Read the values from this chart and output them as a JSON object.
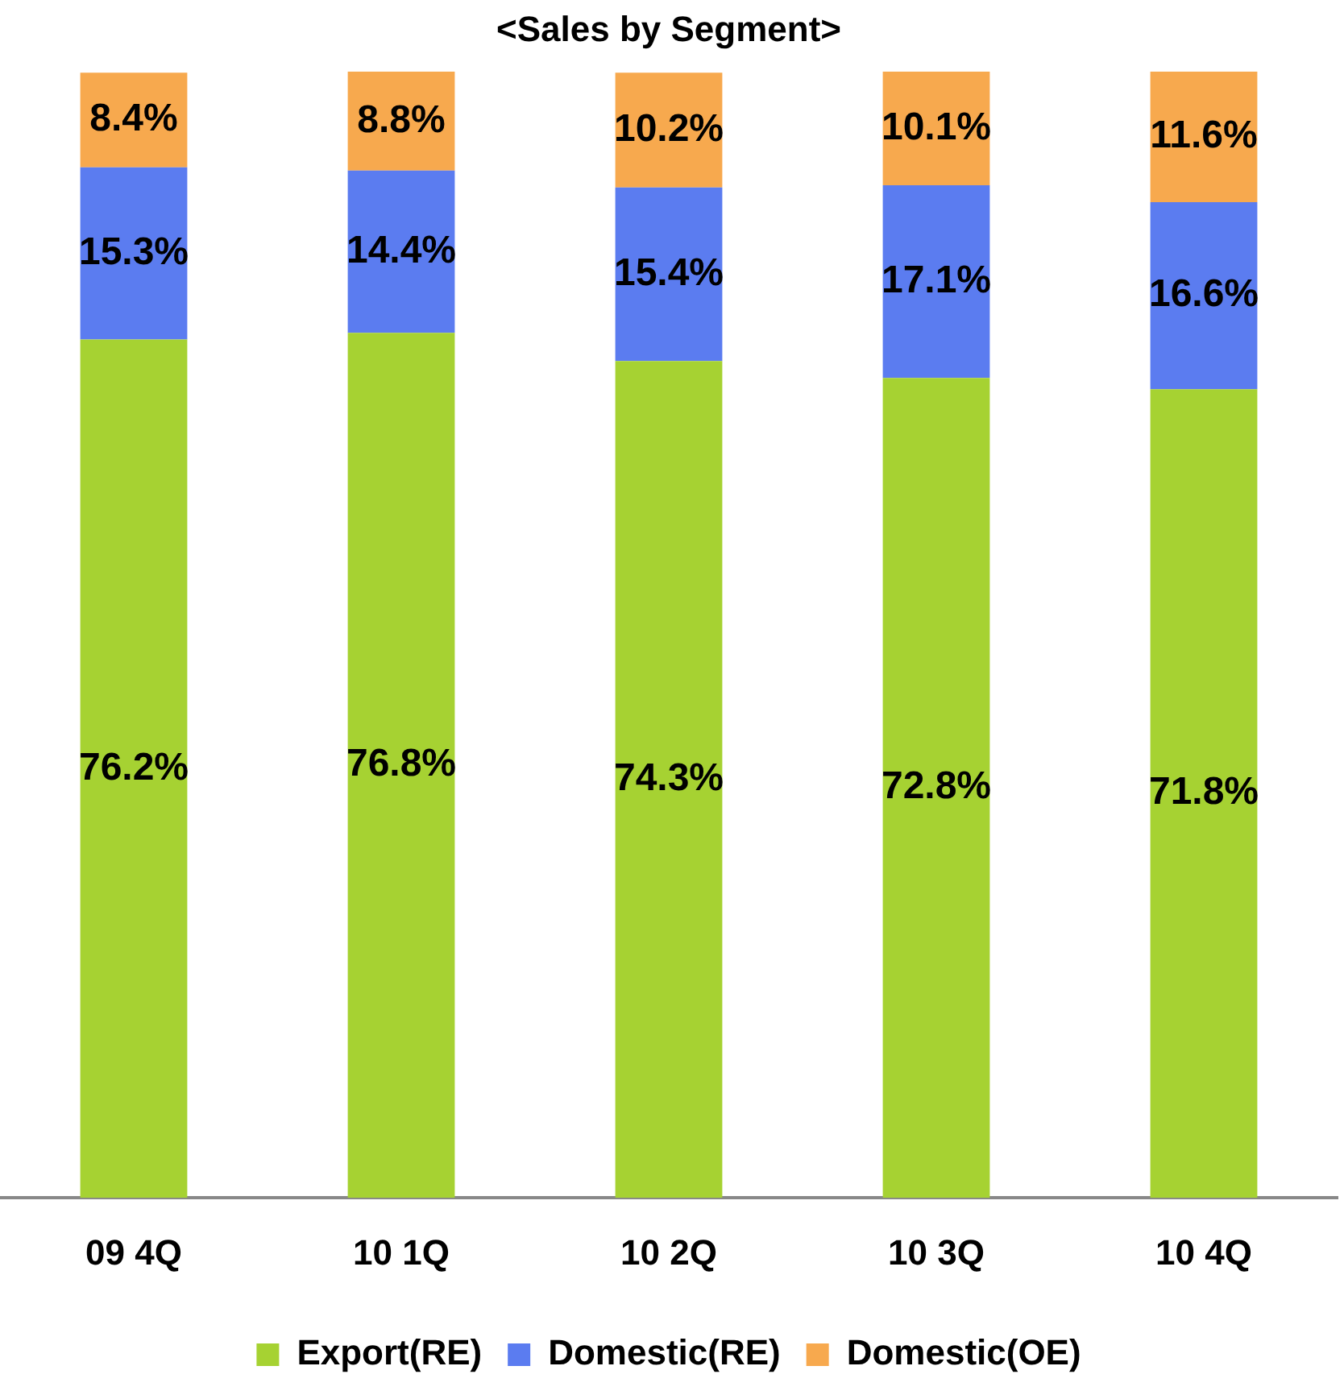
{
  "chart_data": {
    "type": "bar",
    "title": "<Sales by Segment>",
    "stacked": true,
    "categories": [
      "09 4Q",
      "10 1Q",
      "10 2Q",
      "10 3Q",
      "10 4Q"
    ],
    "series": [
      {
        "name": "Export(RE)",
        "color": "#a6d232",
        "values": [
          76.2,
          76.8,
          74.3,
          72.8,
          71.8
        ],
        "value_labels": [
          "76.2%",
          "76.8%",
          "74.3%",
          "72.8%",
          "71.8%"
        ]
      },
      {
        "name": "Domestic(RE)",
        "color": "#5b7cf0",
        "values": [
          15.3,
          14.4,
          15.4,
          17.1,
          16.6
        ],
        "value_labels": [
          "15.3%",
          "14.4%",
          "15.4%",
          "17.1%",
          "16.6%"
        ]
      },
      {
        "name": "Domestic(OE)",
        "color": "#f7a94e",
        "values": [
          8.4,
          8.8,
          10.2,
          10.1,
          11.6
        ],
        "value_labels": [
          "8.4%",
          "8.8%",
          "10.2%",
          "10.1%",
          "11.6%"
        ]
      }
    ],
    "ylim": [
      0,
      100
    ],
    "tick_labels": "x",
    "grid": false,
    "legend": "bottom"
  }
}
